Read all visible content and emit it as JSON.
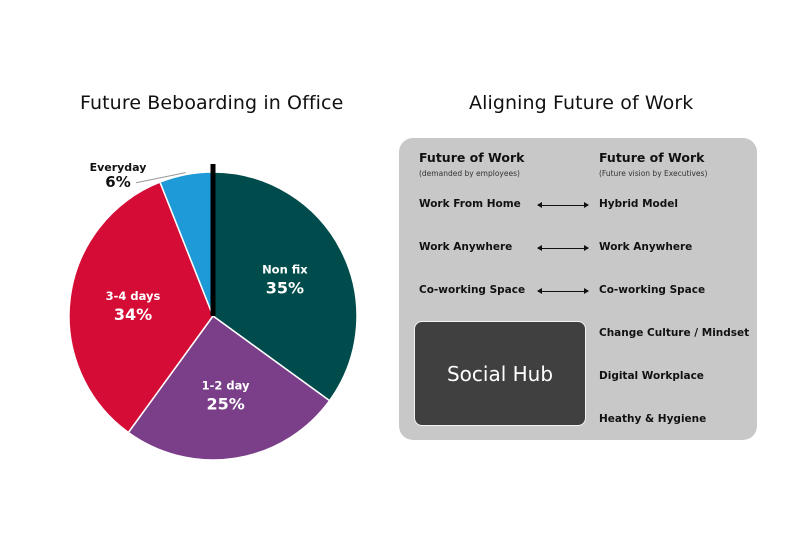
{
  "left_title": "Future Beboarding in Office",
  "right_title": "Aligning Future of Work",
  "chart_data": {
    "type": "pie",
    "title": "Future Beboarding in Office",
    "slices": [
      {
        "label": "Non fix",
        "value": 35,
        "value_label": "35%",
        "color": "#004b4b"
      },
      {
        "label": "1-2 day",
        "value": 25,
        "value_label": "25%",
        "color": "#7b3f8a"
      },
      {
        "label": "3-4 days",
        "value": 34,
        "value_label": "34%",
        "color": "#d50c36"
      },
      {
        "label": "Everyday",
        "value": 6,
        "value_label": "6%",
        "color": "#1e9ad8"
      }
    ]
  },
  "panel": {
    "left_header": "Future of Work",
    "left_sub": "(demanded by employees)",
    "right_header": "Future of Work",
    "right_sub": "(Future vision by Executives)",
    "left_items": [
      "Work From Home",
      "Work Anywhere",
      "Co-working Space"
    ],
    "right_items": [
      "Hybrid Model",
      "Work Anywhere",
      "Co-working Space",
      "Change Culture / Mindset",
      "Digital Workplace",
      "Heathy & Hygiene"
    ],
    "hub_label": "Social Hub"
  }
}
